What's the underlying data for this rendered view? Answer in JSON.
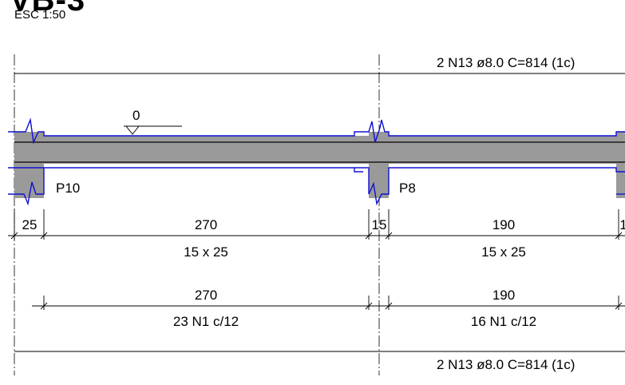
{
  "title": "VB-3",
  "scale": "ESC 1:50",
  "top_rebar": "2 N13 ø8.0 C=814 (1c)",
  "bottom_rebar": "2 N13 ø8.0 C=814 (1c)",
  "level": "0",
  "supports": [
    "P10",
    "P8"
  ],
  "dims_row1": [
    "25",
    "270",
    "15",
    "190",
    "1"
  ],
  "dims_row2": [
    "15 x 25",
    "15 x 25"
  ],
  "dims_row3": [
    "270",
    "190"
  ],
  "dims_row4": [
    "23 N1 c/12",
    "16 N1 c/12"
  ],
  "colors": {
    "slab_fill": "#9a9a9a",
    "column_outline": "#1010d0",
    "line": "#000000"
  }
}
